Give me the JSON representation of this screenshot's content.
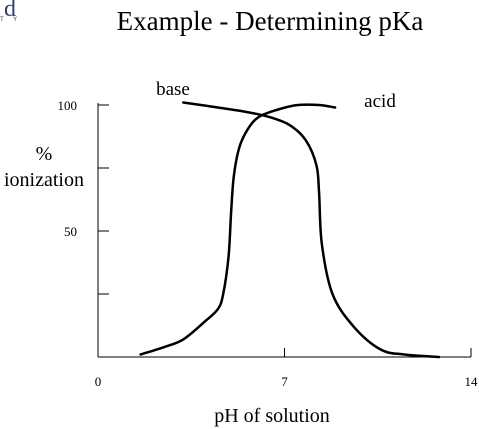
{
  "header": {
    "logo_letter": "d",
    "logo_sub": "T Y"
  },
  "chart_data": {
    "type": "line",
    "title": "Example - Determining pKa",
    "xlabel": "pH of solution",
    "ylabel_line1": "%",
    "ylabel_line2": "ionization",
    "xlim": [
      0,
      14
    ],
    "ylim": [
      0,
      100
    ],
    "x_ticks": [
      {
        "value": 0,
        "label": "0"
      },
      {
        "value": 7,
        "label": "7"
      },
      {
        "value": 14,
        "label": "14"
      }
    ],
    "y_ticks": [
      {
        "value": 25,
        "label": ""
      },
      {
        "value": 50,
        "label": "50"
      },
      {
        "value": 75,
        "label": ""
      },
      {
        "value": 100,
        "label": "100"
      }
    ],
    "series": [
      {
        "name": "base",
        "color": "#000000",
        "points": [
          [
            1.6,
            1
          ],
          [
            2.5,
            4
          ],
          [
            3.2,
            7
          ],
          [
            4.0,
            14
          ],
          [
            4.5,
            19
          ],
          [
            4.7,
            25
          ],
          [
            4.9,
            40
          ],
          [
            5.0,
            58
          ],
          [
            5.1,
            72
          ],
          [
            5.3,
            83
          ],
          [
            5.6,
            90
          ],
          [
            6.0,
            95
          ],
          [
            6.7,
            98
          ],
          [
            7.5,
            100
          ],
          [
            8.3,
            100
          ],
          [
            8.9,
            99
          ]
        ]
      },
      {
        "name": "acid",
        "color": "#000000",
        "points": [
          [
            3.2,
            101
          ],
          [
            4.5,
            99
          ],
          [
            5.7,
            97
          ],
          [
            6.5,
            95
          ],
          [
            7.2,
            92
          ],
          [
            7.8,
            86
          ],
          [
            8.2,
            76
          ],
          [
            8.3,
            65
          ],
          [
            8.4,
            45
          ],
          [
            8.8,
            25
          ],
          [
            9.6,
            12
          ],
          [
            10.6,
            3
          ],
          [
            11.5,
            1
          ],
          [
            12.8,
            0
          ]
        ]
      }
    ],
    "annotations": [
      {
        "text": "base",
        "series": "base"
      },
      {
        "text": "acid",
        "series": "acid"
      }
    ]
  }
}
